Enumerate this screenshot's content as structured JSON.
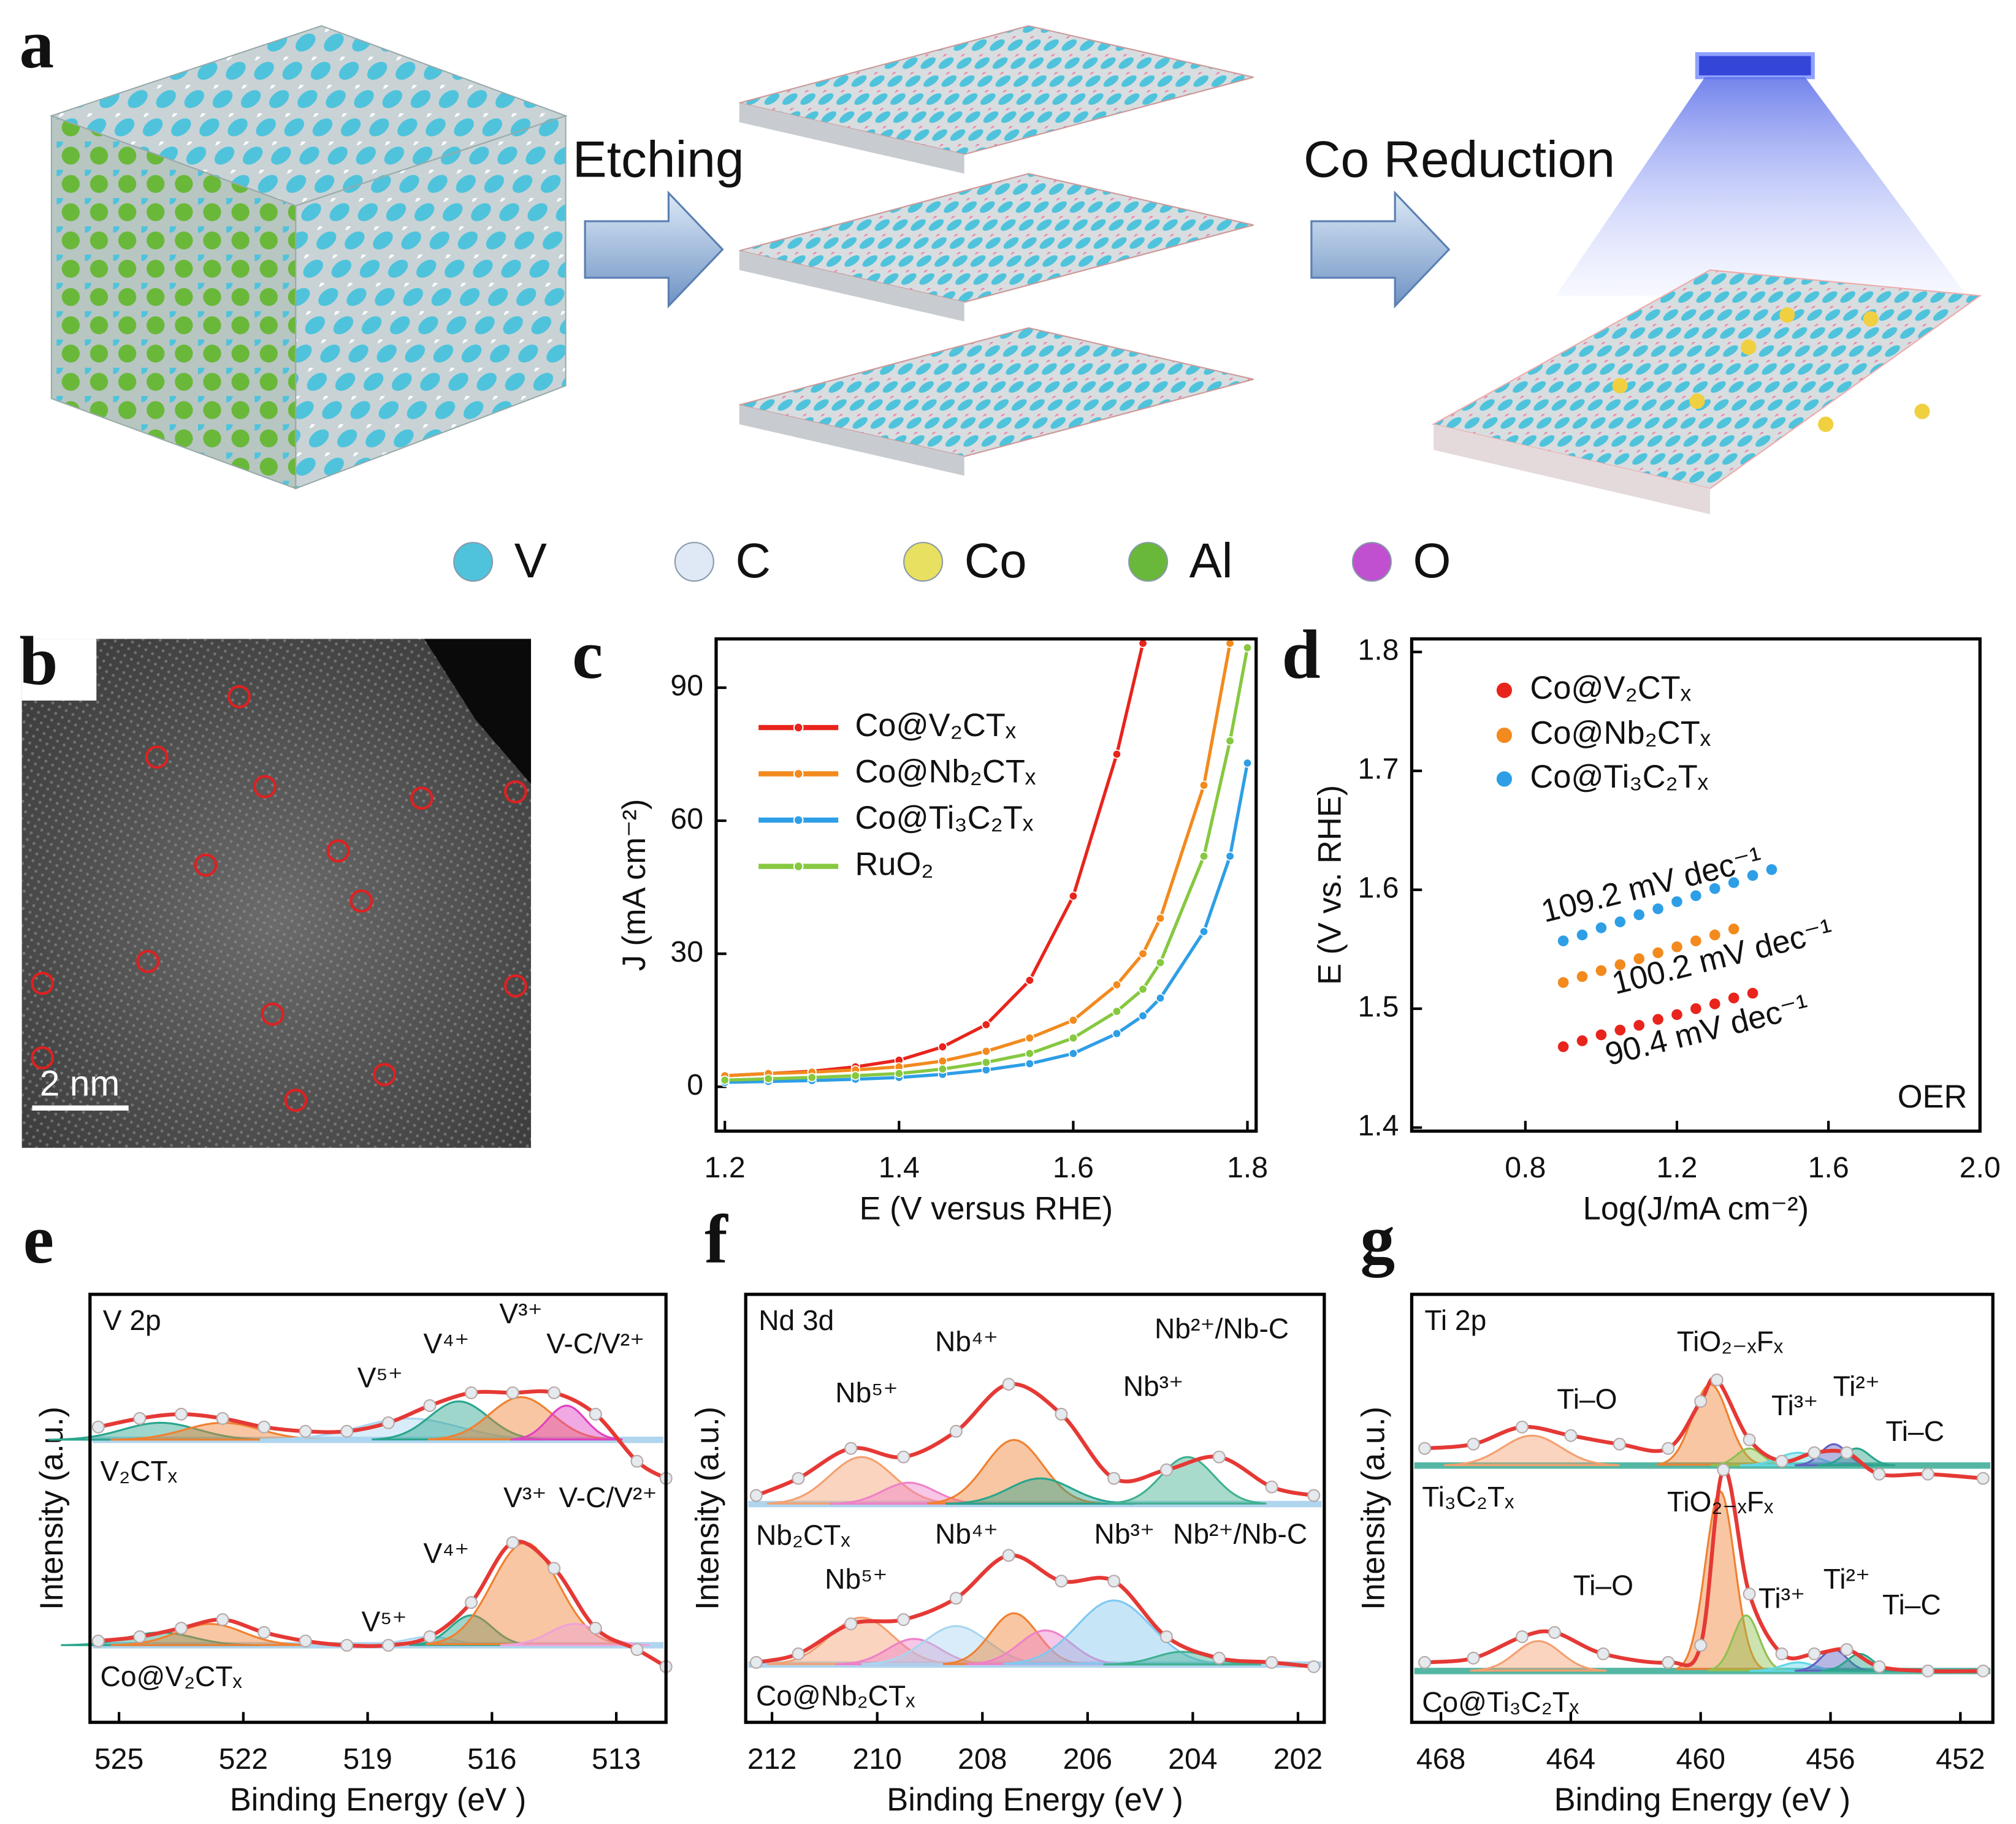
{
  "figure": {
    "panel_a": {
      "label": "a",
      "steps": [
        "Etching",
        "Co Reduction"
      ],
      "legend": [
        "V",
        "C",
        "Co",
        "Al",
        "O"
      ],
      "legend_colors": [
        "#4fc3dc",
        "#dfe8f5",
        "#e8e060",
        "#6ab83a",
        "#c050d0"
      ]
    },
    "panel_b": {
      "label": "b",
      "scale_bar": "2 nm"
    }
  },
  "chart_data": [
    {
      "type": "line",
      "panel": "c",
      "xlabel": "E (V versus RHE)",
      "ylabel": "J (mA cm⁻²)",
      "x": [
        1.2,
        1.25,
        1.3,
        1.35,
        1.4,
        1.45,
        1.5,
        1.55,
        1.6,
        1.65,
        1.68,
        1.7,
        1.75,
        1.78,
        1.8
      ],
      "xlim": [
        1.19,
        1.81
      ],
      "ylim": [
        -10,
        101
      ],
      "xticks": [
        1.2,
        1.4,
        1.6,
        1.8
      ],
      "yticks": [
        0,
        30,
        60,
        90
      ],
      "legend": "upper left",
      "series": [
        {
          "name": "Co@V₂CTₓ",
          "color": "#e8241c",
          "values": [
            2.5,
            3,
            3.5,
            4.5,
            6,
            9,
            14,
            24,
            43,
            75,
            100,
            null,
            null,
            null,
            null
          ]
        },
        {
          "name": "Co@Nb₂CTₓ",
          "color": "#f28a1e",
          "values": [
            2.5,
            3,
            3.3,
            3.8,
            4.5,
            5.8,
            8,
            11,
            15,
            23,
            30,
            38,
            68,
            100,
            null
          ]
        },
        {
          "name": "Co@Ti₃C₂Tₓ",
          "color": "#2e9ee6",
          "values": [
            1,
            1.2,
            1.4,
            1.7,
            2.1,
            2.8,
            3.8,
            5.2,
            7.5,
            12,
            16,
            20,
            35,
            52,
            73
          ]
        },
        {
          "name": "RuO₂",
          "color": "#86c840",
          "values": [
            1.5,
            1.8,
            2.1,
            2.5,
            3,
            4,
            5.5,
            7.5,
            11,
            17,
            22,
            28,
            52,
            78,
            99
          ]
        }
      ]
    },
    {
      "type": "scatter",
      "panel": "d",
      "xlabel": "Log(J/mA cm⁻²)",
      "ylabel": "E (V vs. RHE)",
      "xlim": [
        0.5,
        2.0
      ],
      "ylim": [
        1.397,
        1.811
      ],
      "xticks": [
        0.8,
        1.2,
        1.6,
        {
          "value": 2,
          "label": "2.0"
        }
      ],
      "yticks": [
        1.4,
        1.5,
        1.6,
        1.7,
        1.8
      ],
      "legend": "upper left",
      "annotations": [
        "109.2 mV dec⁻¹",
        "100.2 mV dec⁻¹",
        "90.4 mV dec⁻¹",
        "OER"
      ],
      "series": [
        {
          "name": "Co@V₂CTₓ",
          "color": "#e8241c",
          "x": [
            0.9,
            0.95,
            1.0,
            1.05,
            1.1,
            1.15,
            1.2,
            1.25,
            1.3,
            1.35,
            1.4
          ],
          "values": [
            1.468,
            1.473,
            1.478,
            1.482,
            1.486,
            1.491,
            1.495,
            1.5,
            1.504,
            1.509,
            1.513
          ]
        },
        {
          "name": "Co@Nb₂CTₓ",
          "color": "#f28a1e",
          "x": [
            0.9,
            0.95,
            1.0,
            1.05,
            1.1,
            1.15,
            1.2,
            1.25,
            1.3,
            1.35
          ],
          "values": [
            1.522,
            1.527,
            1.532,
            1.537,
            1.542,
            1.547,
            1.552,
            1.557,
            1.562,
            1.567
          ]
        },
        {
          "name": "Co@Ti₃C₂Tₓ",
          "color": "#2e9ee6",
          "x": [
            0.9,
            0.95,
            1.0,
            1.05,
            1.1,
            1.15,
            1.2,
            1.25,
            1.3,
            1.35,
            1.4,
            1.45
          ],
          "values": [
            1.557,
            1.562,
            1.568,
            1.573,
            1.579,
            1.584,
            1.59,
            1.595,
            1.601,
            1.606,
            1.612,
            1.617
          ]
        }
      ]
    },
    {
      "type": "spectrum",
      "panel": "e",
      "core_level": "V 2p",
      "xlabel": "Binding Energy (eV )",
      "ylabel": "Intensity (a.u.)",
      "xlim": [
        525.7,
        511.8
      ],
      "ylim": [
        0,
        10
      ],
      "xticks": [
        525,
        522,
        519,
        516,
        513
      ],
      "line_color": "#e53935",
      "marker_color": "#e4eaee",
      "baseline_color": "#9ccbea",
      "spectra": [
        {
          "name": "V₂CTₓ",
          "x": [
            525.5,
            524.5,
            523.5,
            522.5,
            521.5,
            520.5,
            519.5,
            518.5,
            517.5,
            516.5,
            515.5,
            514.5,
            513.5,
            512.5,
            511.8
          ],
          "values": [
            6.9,
            7.1,
            7.2,
            7.1,
            6.9,
            6.8,
            6.8,
            7.0,
            7.4,
            7.7,
            7.7,
            7.7,
            7.2,
            6.1,
            5.7
          ],
          "baseline": 6.6,
          "components": [
            {
              "center": 524.0,
              "height": 0.4,
              "width": 0.9,
              "color": "#2aa58c"
            },
            {
              "center": 522.5,
              "height": 0.4,
              "width": 0.9,
              "color": "#f08030"
            },
            {
              "center": 518.0,
              "height": 0.5,
              "width": 1.2,
              "color": "#a9d6f2"
            },
            {
              "center": 516.8,
              "height": 0.9,
              "width": 0.7,
              "color": "#2aa58c"
            },
            {
              "center": 515.3,
              "height": 1.0,
              "width": 0.75,
              "color": "#f08030"
            },
            {
              "center": 514.2,
              "height": 0.8,
              "width": 0.45,
              "color": "#e040c0"
            }
          ],
          "labels": [
            "V⁵⁺",
            "V⁴⁺",
            "V³⁺",
            "V-C/V²⁺"
          ]
        },
        {
          "name": "Co@V₂CTₓ",
          "x": [
            525.5,
            524.5,
            523.5,
            522.5,
            521.5,
            520.5,
            519.5,
            518.5,
            517.5,
            516.5,
            515.5,
            514.5,
            513.5,
            512.5,
            511.8
          ],
          "values": [
            1.9,
            2.0,
            2.2,
            2.4,
            2.1,
            1.9,
            1.8,
            1.8,
            2.0,
            2.8,
            4.2,
            3.6,
            2.2,
            1.7,
            1.3
          ],
          "baseline": 1.8,
          "components": [
            {
              "center": 524.0,
              "height": 0.3,
              "width": 0.8,
              "color": "#2aa58c"
            },
            {
              "center": 522.8,
              "height": 0.5,
              "width": 0.8,
              "color": "#f08030"
            },
            {
              "center": 517.5,
              "height": 0.2,
              "width": 0.6,
              "color": "#a9d6f2"
            },
            {
              "center": 516.5,
              "height": 0.7,
              "width": 0.5,
              "color": "#2aa58c"
            },
            {
              "center": 515.2,
              "height": 2.4,
              "width": 0.8,
              "color": "#f08030"
            },
            {
              "center": 514.0,
              "height": 0.5,
              "width": 0.6,
              "color": "#f0a0d8"
            }
          ],
          "labels": [
            "V⁵⁺",
            "V⁴⁺",
            "V³⁺",
            "V-C/V²⁺"
          ]
        }
      ]
    },
    {
      "type": "spectrum",
      "panel": "f",
      "core_level": "Nd 3d",
      "xlabel": "Binding Energy (eV )",
      "ylabel": "Intensity (a.u.)",
      "xlim": [
        212.5,
        201.5
      ],
      "ylim": [
        0,
        10
      ],
      "xticks": [
        212,
        210,
        208,
        206,
        204,
        202
      ],
      "line_color": "#e53935",
      "marker_color": "#e4eaee",
      "baseline_color": "#9ccbea",
      "spectra": [
        {
          "name": "Nb₂CTₓ",
          "x": [
            212.3,
            211.5,
            210.5,
            209.5,
            208.5,
            207.5,
            206.5,
            205.5,
            204.5,
            203.5,
            202.5,
            201.7
          ],
          "values": [
            5.3,
            5.7,
            6.4,
            6.2,
            6.8,
            7.9,
            7.2,
            5.7,
            5.9,
            6.2,
            5.5,
            5.3
          ],
          "baseline": 5.1,
          "components": [
            {
              "center": 210.3,
              "height": 1.1,
              "width": 0.6,
              "color": "#f4a070"
            },
            {
              "center": 209.4,
              "height": 0.5,
              "width": 0.5,
              "color": "#f080c8"
            },
            {
              "center": 207.4,
              "height": 1.5,
              "width": 0.55,
              "color": "#f08030"
            },
            {
              "center": 206.9,
              "height": 0.6,
              "width": 0.6,
              "color": "#2aa58c"
            },
            {
              "center": 204.1,
              "height": 1.1,
              "width": 0.5,
              "color": "#40b090"
            }
          ],
          "labels": [
            "Nb⁵⁺",
            "Nb⁴⁺",
            "Nb³⁺",
            "Nb²⁺/Nb-C"
          ]
        },
        {
          "name": "Co@Nb₂CTₓ",
          "x": [
            212.3,
            211.5,
            210.5,
            209.5,
            208.5,
            207.5,
            206.5,
            205.5,
            204.5,
            203.5,
            202.5,
            201.7
          ],
          "values": [
            1.4,
            1.6,
            2.3,
            2.4,
            2.9,
            3.9,
            3.3,
            3.3,
            2.0,
            1.5,
            1.4,
            1.3
          ],
          "baseline": 1.35,
          "components": [
            {
              "center": 210.3,
              "height": 1.1,
              "width": 0.6,
              "color": "#f4a070"
            },
            {
              "center": 209.3,
              "height": 0.6,
              "width": 0.5,
              "color": "#f080c8"
            },
            {
              "center": 208.5,
              "height": 0.9,
              "width": 0.6,
              "color": "#a9d6f2"
            },
            {
              "center": 207.4,
              "height": 1.2,
              "width": 0.45,
              "color": "#f08030"
            },
            {
              "center": 206.8,
              "height": 0.8,
              "width": 0.5,
              "color": "#f080c8"
            },
            {
              "center": 205.5,
              "height": 1.5,
              "width": 0.7,
              "color": "#80c8f0"
            },
            {
              "center": 204.2,
              "height": 0.3,
              "width": 0.5,
              "color": "#40b090"
            }
          ],
          "labels": [
            "Nb⁵⁺",
            "Nb⁴⁺",
            "Nb³⁺",
            "Nb²⁺/Nb-C"
          ]
        }
      ]
    },
    {
      "type": "spectrum",
      "panel": "g",
      "core_level": "Ti 2p",
      "xlabel": "Binding Energy (eV )",
      "ylabel": "Intensity (a.u.)",
      "xlim": [
        468.9,
        451
      ],
      "ylim": [
        0,
        10
      ],
      "xticks": [
        468,
        464,
        460,
        456,
        452
      ],
      "line_color": "#e53935",
      "marker_color": "#e4eaee",
      "baseline_color": "#2aa58c",
      "spectra": [
        {
          "name": "Ti₃C₂Tₓ",
          "x": [
            468.5,
            467,
            465.5,
            464,
            462.5,
            461,
            460,
            459.5,
            458.5,
            457.5,
            456.5,
            455.5,
            454.5,
            453,
            451.3
          ],
          "values": [
            6.4,
            6.5,
            6.9,
            6.7,
            6.5,
            6.4,
            7.5,
            8.0,
            6.6,
            6.1,
            6.3,
            6.3,
            5.8,
            5.8,
            5.7
          ],
          "baseline": 6.0,
          "components": [
            {
              "center": 465.2,
              "height": 0.7,
              "width": 0.9,
              "color": "#f4a070"
            },
            {
              "center": 459.7,
              "height": 1.9,
              "width": 0.55,
              "color": "#f08030"
            },
            {
              "center": 458.5,
              "height": 0.4,
              "width": 0.4,
              "color": "#90c050"
            },
            {
              "center": 457.0,
              "height": 0.3,
              "width": 0.6,
              "color": "#60d8e8"
            },
            {
              "center": 455.9,
              "height": 0.5,
              "width": 0.4,
              "color": "#6060c0"
            },
            {
              "center": 455.2,
              "height": 0.4,
              "width": 0.4,
              "color": "#2aa58c"
            }
          ],
          "labels": [
            "Ti–O",
            "TiO₂₋ₓFₓ",
            "Ti³⁺",
            "Ti²⁺",
            "Ti–C"
          ]
        },
        {
          "name": "Co@Ti₃C₂Tₓ",
          "x": [
            468.5,
            467,
            465.5,
            464.5,
            463,
            461,
            460,
            459.3,
            458.5,
            457.5,
            456.5,
            455.5,
            454.5,
            453,
            451.3
          ],
          "values": [
            1.4,
            1.5,
            2.0,
            2.1,
            1.6,
            1.4,
            1.8,
            5.9,
            3.0,
            1.6,
            1.6,
            1.7,
            1.3,
            1.2,
            1.2
          ],
          "baseline": 1.2,
          "components": [
            {
              "center": 465.0,
              "height": 0.7,
              "width": 0.7,
              "color": "#f4a070"
            },
            {
              "center": 459.4,
              "height": 4.2,
              "width": 0.45,
              "color": "#f08030"
            },
            {
              "center": 458.6,
              "height": 1.3,
              "width": 0.4,
              "color": "#90c050"
            },
            {
              "center": 457.0,
              "height": 0.2,
              "width": 0.5,
              "color": "#60d8e8"
            },
            {
              "center": 455.9,
              "height": 0.5,
              "width": 0.4,
              "color": "#6060c0"
            },
            {
              "center": 455.1,
              "height": 0.4,
              "width": 0.4,
              "color": "#2aa58c"
            }
          ],
          "labels": [
            "Ti–O",
            "TiO₂₋ₓFₓ",
            "Ti³⁺",
            "Ti²⁺",
            "Ti–C"
          ]
        }
      ]
    }
  ]
}
